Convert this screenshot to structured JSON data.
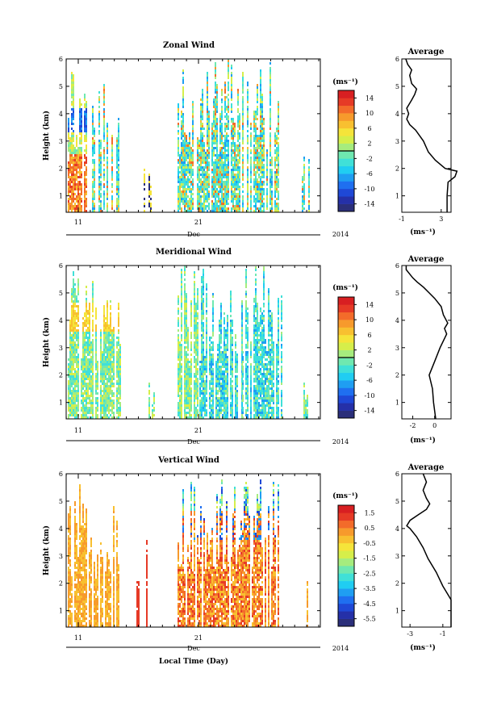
{
  "chart_data": [
    {
      "type": "heatmap",
      "title": "Zonal Wind",
      "ylabel": "Height (km)",
      "ylim": [
        0.4,
        6
      ],
      "yticks": [
        "1",
        "2",
        "3",
        "4",
        "5",
        "6"
      ],
      "xticks": [
        "11",
        "21"
      ],
      "x_month_label": "Dec",
      "x_year_label": "2014",
      "colorbar": {
        "unit": "(ms⁻¹)",
        "ticks": [
          "14",
          "10",
          "6",
          "2",
          "-2",
          "-6",
          "-10",
          "-14"
        ],
        "min": -16,
        "max": 16,
        "zero_line": 0
      },
      "avg_panel": {
        "title": "Average",
        "xlabel": "(ms⁻¹)",
        "xticks": [
          "-1",
          "3"
        ],
        "xlim": [
          -1,
          4
        ],
        "profile": [
          [
            3.6,
            0.4
          ],
          [
            3.6,
            1.0
          ],
          [
            3.7,
            1.5
          ],
          [
            4.4,
            1.7
          ],
          [
            4.6,
            1.9
          ],
          [
            3.4,
            2.0
          ],
          [
            2.4,
            2.3
          ],
          [
            1.7,
            2.6
          ],
          [
            1.2,
            3.0
          ],
          [
            0.4,
            3.4
          ],
          [
            -0.2,
            3.6
          ],
          [
            -0.5,
            3.8
          ],
          [
            -0.3,
            4.0
          ],
          [
            -0.5,
            4.2
          ],
          [
            0.0,
            4.5
          ],
          [
            0.3,
            4.7
          ],
          [
            0.5,
            4.9
          ],
          [
            0.0,
            5.1
          ],
          [
            -0.2,
            5.4
          ],
          [
            0.0,
            5.6
          ],
          [
            -0.4,
            5.8
          ],
          [
            -0.6,
            6.0
          ]
        ]
      }
    },
    {
      "type": "heatmap",
      "title": "Meridional Wind",
      "ylabel": "Height (km)",
      "ylim": [
        0.4,
        6
      ],
      "yticks": [
        "1",
        "2",
        "3",
        "4",
        "5",
        "6"
      ],
      "xticks": [
        "11",
        "21"
      ],
      "x_month_label": "Dec",
      "x_year_label": "2014",
      "colorbar": {
        "unit": "(ms⁻¹)",
        "ticks": [
          "14",
          "10",
          "6",
          "2",
          "-2",
          "-6",
          "-10",
          "-14"
        ],
        "min": -16,
        "max": 16,
        "zero_line": 0
      },
      "avg_panel": {
        "title": "Average",
        "xlabel": "(ms⁻¹)",
        "xticks": [
          "-2",
          "0"
        ],
        "xlim": [
          -3,
          1.5
        ],
        "profile": [
          [
            0.1,
            0.4
          ],
          [
            -0.1,
            1.0
          ],
          [
            -0.2,
            1.5
          ],
          [
            -0.5,
            2.0
          ],
          [
            0.0,
            2.5
          ],
          [
            0.5,
            3.0
          ],
          [
            1.1,
            3.5
          ],
          [
            0.9,
            3.7
          ],
          [
            1.2,
            3.9
          ],
          [
            0.8,
            4.2
          ],
          [
            0.6,
            4.5
          ],
          [
            0.0,
            4.8
          ],
          [
            -0.5,
            5.0
          ],
          [
            -1.0,
            5.2
          ],
          [
            -1.6,
            5.4
          ],
          [
            -2.0,
            5.55
          ],
          [
            -2.3,
            5.7
          ],
          [
            -2.6,
            5.85
          ],
          [
            -2.6,
            6.0
          ]
        ]
      }
    },
    {
      "type": "heatmap",
      "title": "Vertical Wind",
      "ylabel": "Height (km)",
      "xlabel": "Local Time (Day)",
      "ylim": [
        0.4,
        6
      ],
      "yticks": [
        "1",
        "2",
        "3",
        "4",
        "5",
        "6"
      ],
      "xticks": [
        "11",
        "21"
      ],
      "x_month_label": "Dec",
      "x_year_label": "2014",
      "colorbar": {
        "unit": "(ms⁻¹)",
        "ticks": [
          "1.5",
          "0.5",
          "-0.5",
          "-1.5",
          "-2.5",
          "-3.5",
          "-4.5",
          "-5.5"
        ],
        "min": -6,
        "max": 2
      },
      "avg_panel": {
        "title": "Average",
        "xlabel": "(ms⁻¹)",
        "xticks": [
          "-3",
          "-1"
        ],
        "xlim": [
          -3.5,
          -0.5
        ],
        "profile": [
          [
            -0.5,
            0.4
          ],
          [
            -0.5,
            1.4
          ],
          [
            -0.7,
            1.6
          ],
          [
            -1.0,
            1.9
          ],
          [
            -1.4,
            2.4
          ],
          [
            -1.9,
            2.9
          ],
          [
            -2.2,
            3.3
          ],
          [
            -2.6,
            3.7
          ],
          [
            -3.0,
            4.0
          ],
          [
            -3.2,
            4.1
          ],
          [
            -3.0,
            4.3
          ],
          [
            -2.5,
            4.5
          ],
          [
            -2.0,
            4.7
          ],
          [
            -1.8,
            4.9
          ],
          [
            -2.0,
            5.1
          ],
          [
            -2.2,
            5.4
          ],
          [
            -2.0,
            5.7
          ],
          [
            -2.2,
            6.0
          ]
        ]
      }
    }
  ]
}
